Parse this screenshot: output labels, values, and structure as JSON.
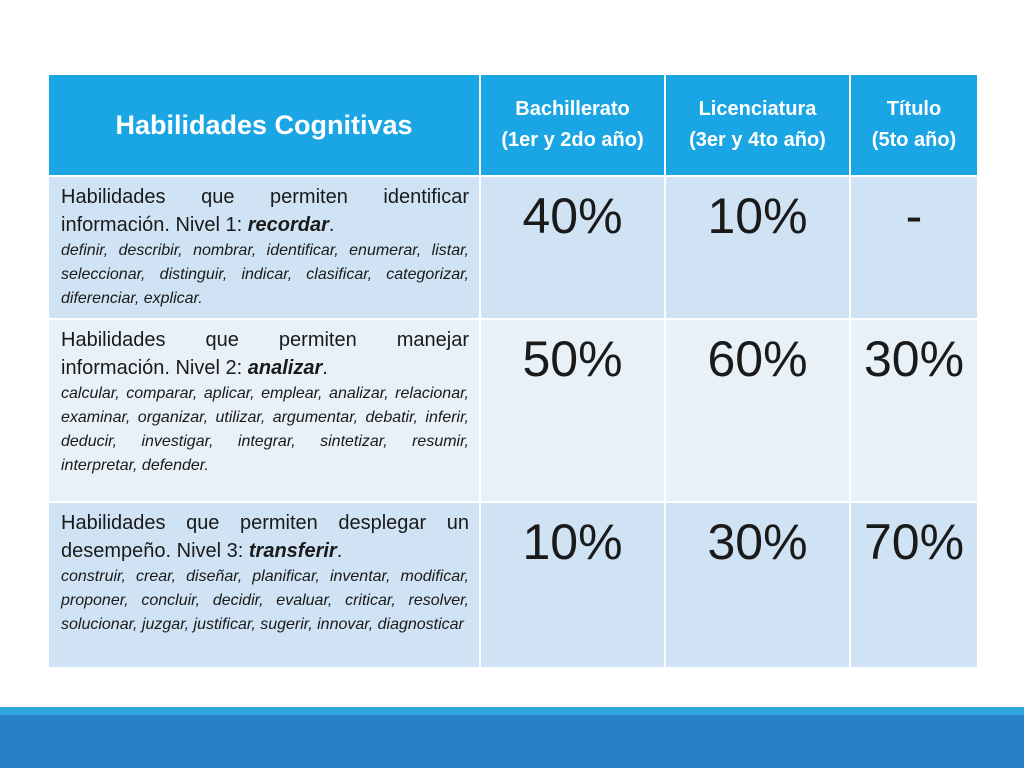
{
  "table": {
    "headers": {
      "skill": "Habilidades Cognitivas",
      "bachillerato": [
        "Bachillerato",
        "(1er y 2do año)"
      ],
      "licenciatura": [
        "Licenciatura",
        "(3er y 4to año)"
      ],
      "titulo": [
        "Título",
        "(5to año)"
      ]
    },
    "rows": [
      {
        "lead": "Habilidades que permiten identificar información. Nivel 1: ",
        "level": "recordar",
        "end": ".",
        "verbs": "definir, describir, nombrar, identificar, enumerar, listar, seleccionar, distinguir, indicar, clasificar, categorizar, diferenciar, explicar.",
        "bachillerato": "40%",
        "licenciatura": "10%",
        "titulo": "-"
      },
      {
        "lead": "Habilidades que permiten manejar información. Nivel 2: ",
        "level": "analizar",
        "end": ".",
        "verbs": "calcular, comparar, aplicar, emplear, analizar, relacionar, examinar, organizar, utilizar, argumentar, debatir, inferir, deducir, investigar, integrar, sintetizar, resumir, interpretar, defender.",
        "bachillerato": "50%",
        "licenciatura": "60%",
        "titulo": "30%"
      },
      {
        "lead": "Habilidades que permiten desplegar un desempeño. Nivel 3: ",
        "level": "transferir",
        "end": ".",
        "verbs": "construir, crear, diseñar, planificar, inventar, modificar, proponer, concluir, decidir, evaluar, criticar, resolver, solucionar, juzgar, justificar, sugerir, innovar, diagnosticar",
        "bachillerato": "10%",
        "licenciatura": "30%",
        "titulo": "70%"
      }
    ]
  },
  "colors": {
    "header": "#1aa6e4",
    "row_dark": "#cfe3f4",
    "row_light": "#e8f0f8",
    "footer_bar": "#2a80c7",
    "footer_stripe": "#2ea7df"
  }
}
